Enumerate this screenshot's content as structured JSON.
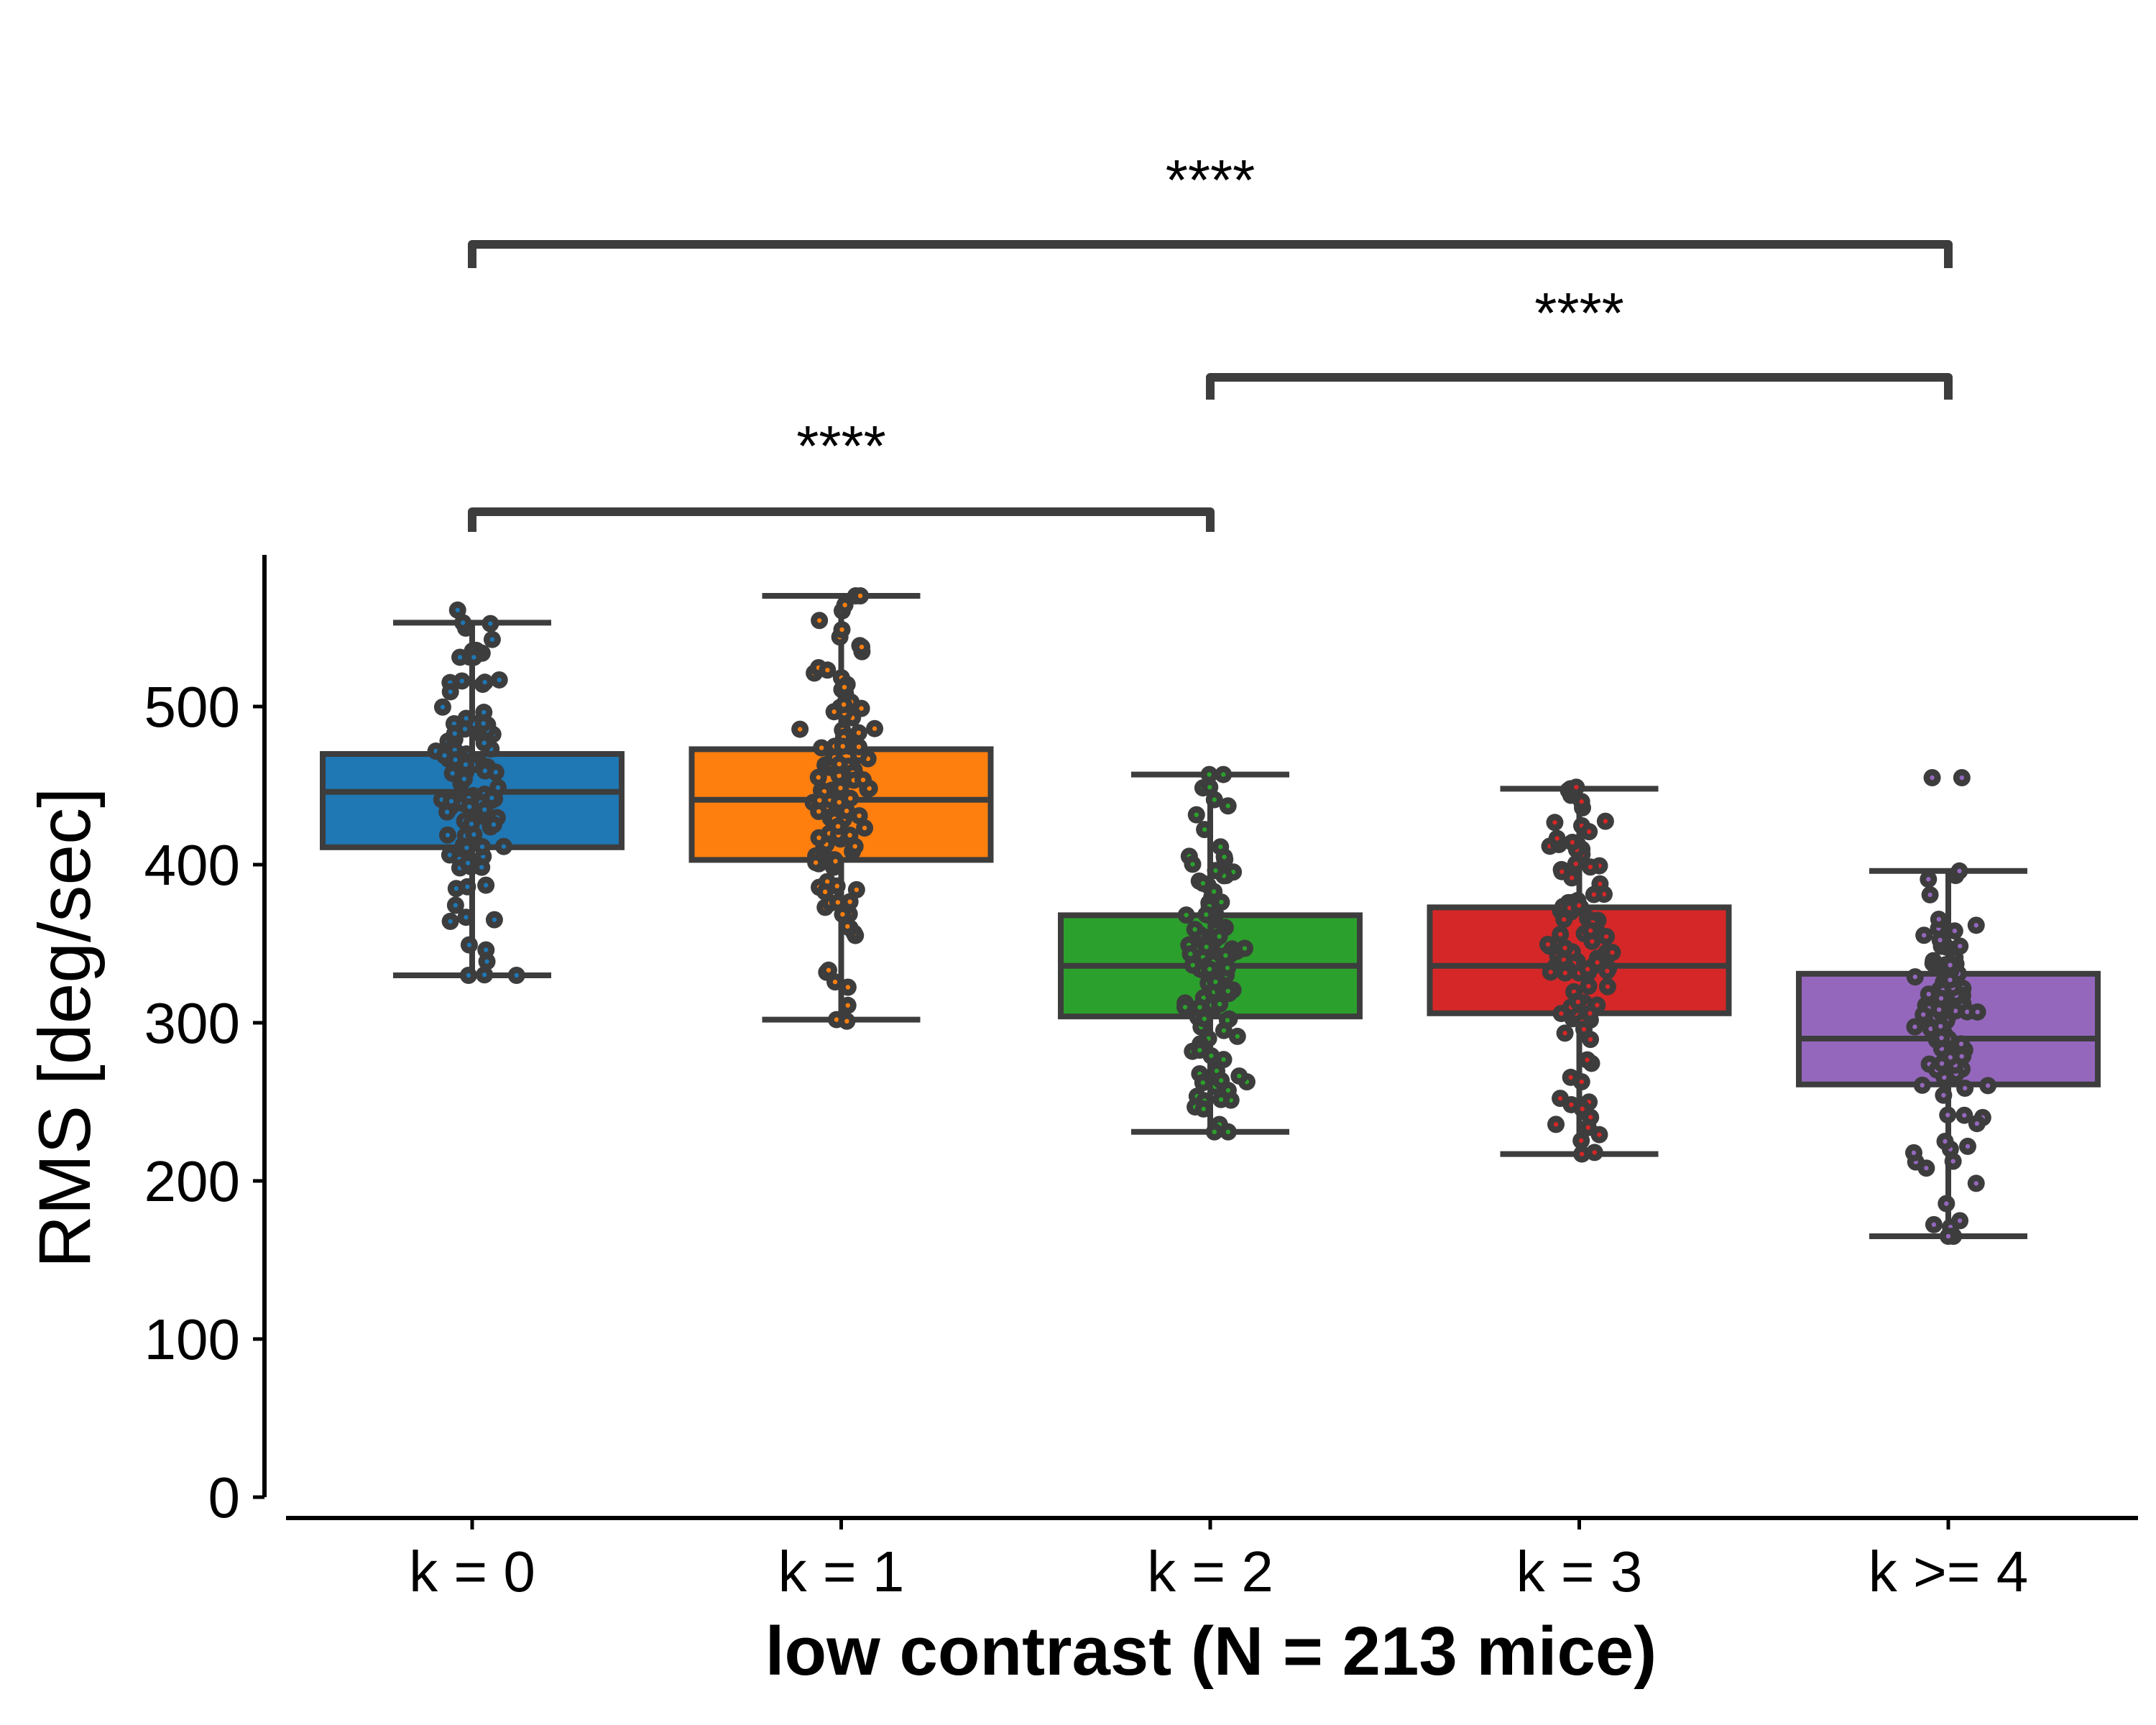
{
  "chart_data": {
    "type": "box",
    "title": "",
    "xlabel": "low contrast (N = 213 mice)",
    "ylabel": "RMS [deg/sec]",
    "ylim": [
      0,
      590
    ],
    "yticks": [
      0,
      100,
      200,
      300,
      400,
      500
    ],
    "categories": [
      "k = 0",
      "k = 1",
      "k = 2",
      "k = 3",
      "k >= 4"
    ],
    "series": [
      {
        "category": "k = 0",
        "color": "#1f77b4",
        "whisker_low": 330,
        "q1": 411,
        "median": 446,
        "q3": 470,
        "whisker_high": 553,
        "min": 330,
        "max": 561
      },
      {
        "category": "k = 1",
        "color": "#ff7f0e",
        "whisker_low": 302,
        "q1": 403,
        "median": 441,
        "q3": 473,
        "whisker_high": 570,
        "min": 301,
        "max": 570
      },
      {
        "category": "k = 2",
        "color": "#2ca02c",
        "whisker_low": 231,
        "q1": 304,
        "median": 336,
        "q3": 368,
        "whisker_high": 457,
        "min": 231,
        "max": 457
      },
      {
        "category": "k = 3",
        "color": "#d62728",
        "whisker_low": 217,
        "q1": 306,
        "median": 336,
        "q3": 373,
        "whisker_high": 448,
        "min": 218,
        "max": 449
      },
      {
        "category": "k >= 4",
        "color": "#9467bd",
        "whisker_low": 165,
        "q1": 261,
        "median": 290,
        "q3": 331,
        "whisker_high": 396,
        "min": 165,
        "max": 455,
        "outliers": [
          455
        ]
      }
    ],
    "significance": [
      {
        "from": "k = 0",
        "to": "k = 2",
        "label": "****"
      },
      {
        "from": "k = 2",
        "to": "k >= 4",
        "label": "****"
      },
      {
        "from": "k = 0",
        "to": "k >= 4",
        "label": "****"
      }
    ]
  }
}
